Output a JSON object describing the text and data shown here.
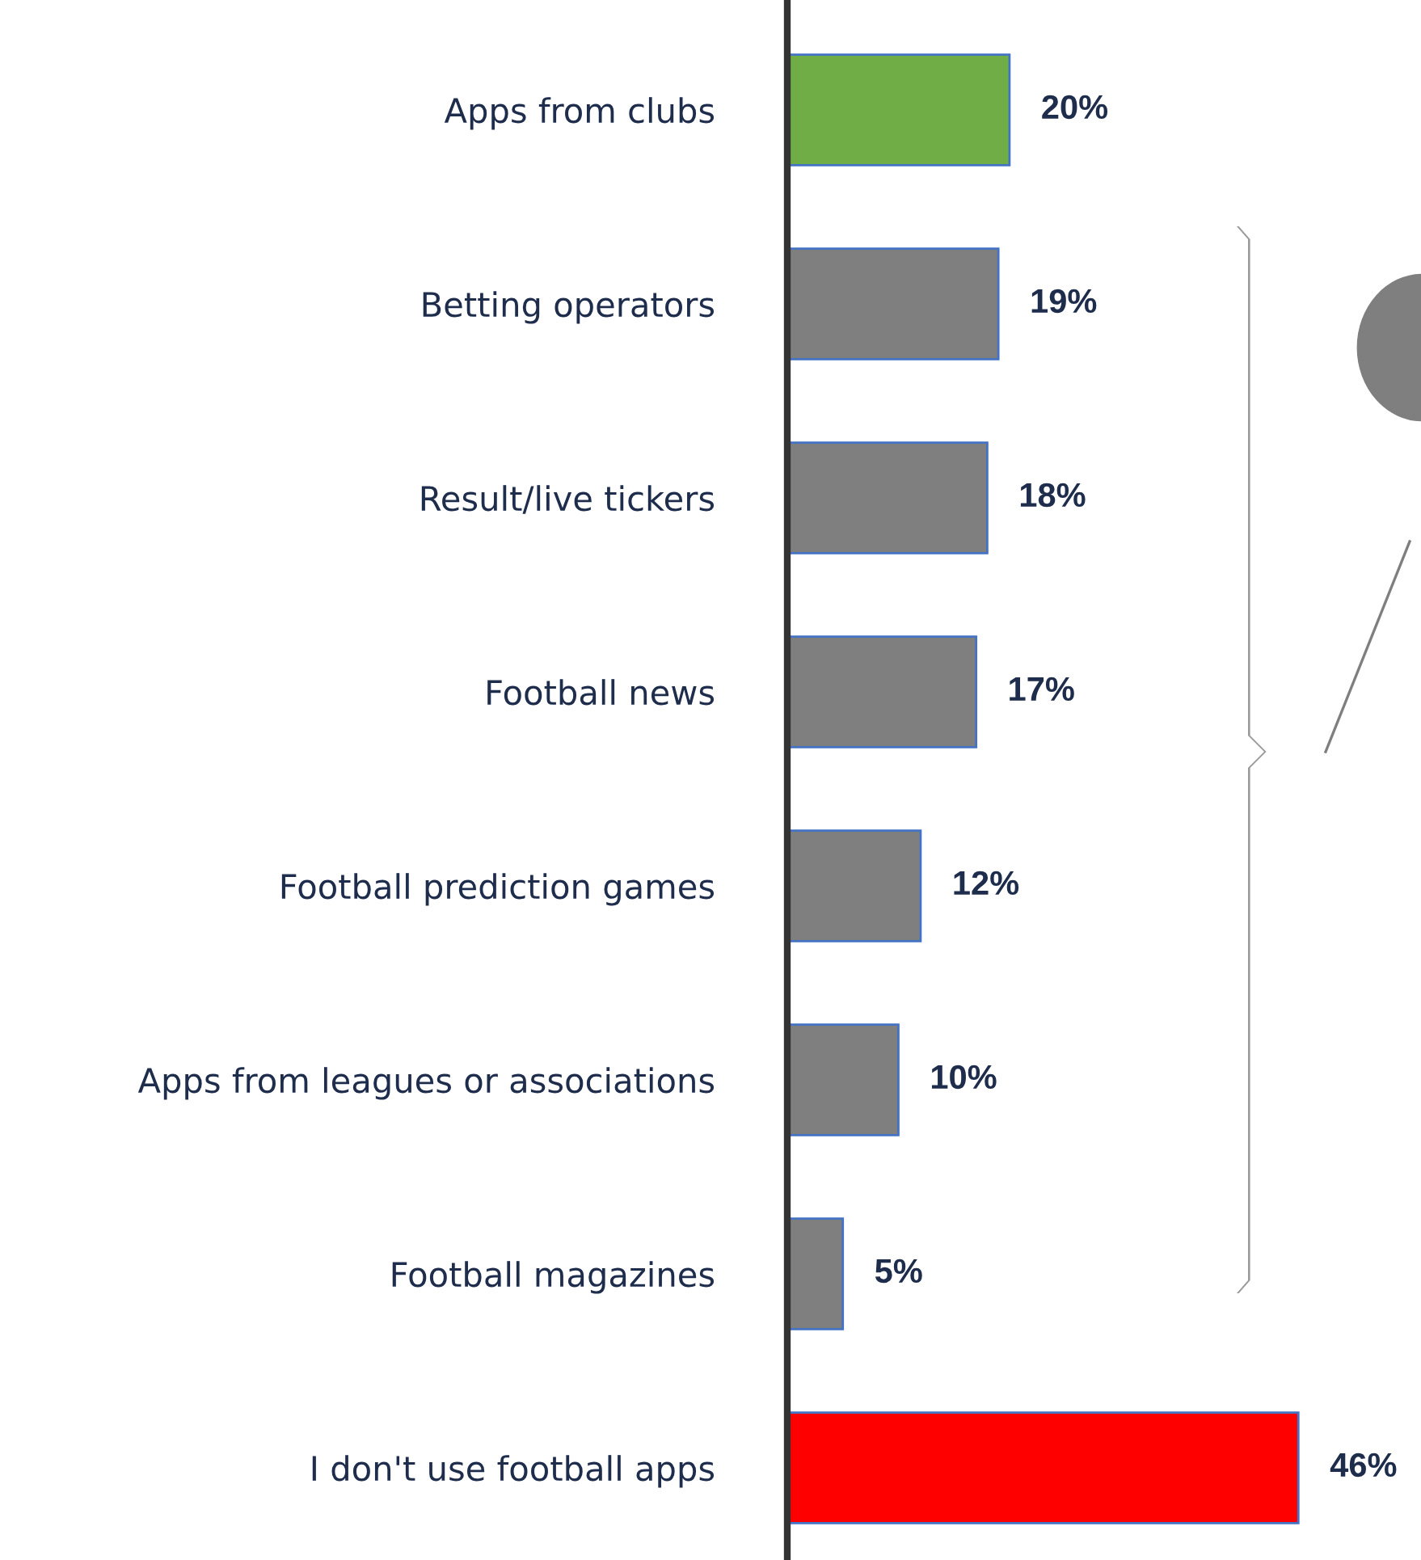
{
  "chart_data": {
    "type": "bar",
    "orientation": "horizontal",
    "categories": [
      "Apps from clubs",
      "Betting operators",
      "Result/live tickers",
      "Football news",
      "Football prediction games",
      "Apps from leagues or associations",
      "Football magazines",
      "I don't use football apps"
    ],
    "values": [
      20,
      19,
      18,
      17,
      12,
      10,
      5,
      46
    ],
    "colors": [
      "#70ad47",
      "#7f7f7f",
      "#7f7f7f",
      "#7f7f7f",
      "#7f7f7f",
      "#7f7f7f",
      "#7f7f7f",
      "#ff0000"
    ],
    "value_labels": [
      "20%",
      "19%",
      "18%",
      "17%",
      "12%",
      "10%",
      "5%",
      "46%"
    ]
  }
}
